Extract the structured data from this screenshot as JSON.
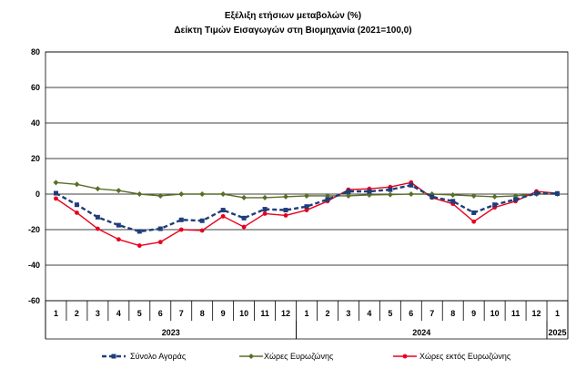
{
  "chart_data": {
    "type": "line",
    "title": "Εξέλιξη ετήσιων μεταβολών (%)",
    "subtitle": "Δείκτη Τιμών Εισαγωγών στη Βιομηχανία (2021=100,0)",
    "xlabel": "",
    "ylabel": "",
    "ylim": [
      -60,
      80
    ],
    "yticks": [
      80,
      60,
      40,
      20,
      0,
      -20,
      -40,
      -60
    ],
    "grid": true,
    "legend_position": "bottom",
    "categories": [
      "1",
      "2",
      "3",
      "4",
      "5",
      "6",
      "7",
      "8",
      "9",
      "10",
      "11",
      "12",
      "1",
      "2",
      "3",
      "4",
      "5",
      "6",
      "7",
      "8",
      "9",
      "10",
      "11",
      "12",
      "1"
    ],
    "year_groups": [
      {
        "label": "2023",
        "start": 0,
        "end": 11
      },
      {
        "label": "2024",
        "start": 12,
        "end": 23
      },
      {
        "label": "2025",
        "start": 24,
        "end": 24
      }
    ],
    "series": [
      {
        "name": "Σύνολο Αγοράς",
        "color": "#1f3d7a",
        "style": "dashed-square",
        "values": [
          0.5,
          -6,
          -13,
          -17.5,
          -21,
          -19.5,
          -14.5,
          -15,
          -9,
          -13.5,
          -8.5,
          -9,
          -7,
          -3,
          1.5,
          1.5,
          2.5,
          5,
          -1.5,
          -4,
          -10.5,
          -6,
          -3,
          0.5,
          0.3
        ]
      },
      {
        "name": "Χώρες Ευρωζώνης",
        "color": "#5a6e28",
        "style": "solid-diamond",
        "values": [
          6.5,
          5.5,
          3,
          2,
          0,
          -1,
          0,
          0,
          0,
          -2,
          -2,
          -1.5,
          -1,
          -1,
          -1,
          -0.5,
          -0.3,
          0,
          0,
          -0.5,
          -1,
          -1.5,
          -1,
          0,
          0
        ]
      },
      {
        "name": "Χώρες εκτός Ευρωζώνης",
        "color": "#e8001c",
        "style": "solid-circle",
        "values": [
          -2.5,
          -10.5,
          -19.5,
          -25.5,
          -29,
          -27,
          -20,
          -20.5,
          -12.5,
          -18.5,
          -11,
          -12,
          -9,
          -4,
          2.5,
          3,
          4,
          6.5,
          -2,
          -5.5,
          -15.5,
          -7.5,
          -4,
          1.5,
          0.5
        ]
      }
    ]
  }
}
